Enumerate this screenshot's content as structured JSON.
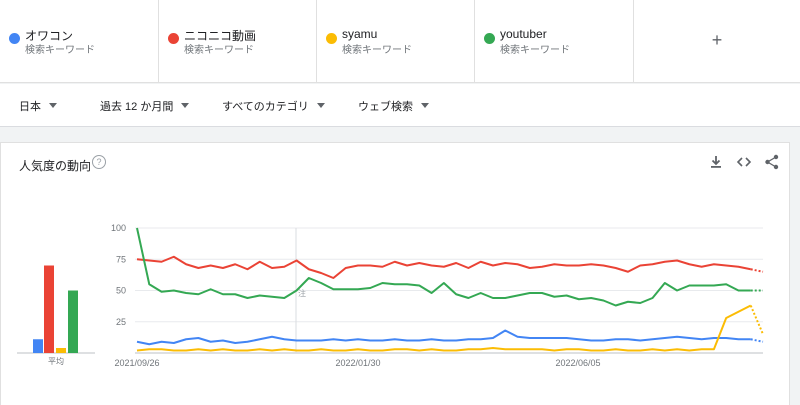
{
  "terms": [
    {
      "name": "オワコン",
      "sub": "検索キーワード",
      "color": "#4285f4"
    },
    {
      "name": "ニコニコ動画",
      "sub": "検索キーワード",
      "color": "#ea4335"
    },
    {
      "name": "syamu",
      "sub": "検索キーワード",
      "color": "#fbbc04"
    },
    {
      "name": "youtuber",
      "sub": "検索キーワード",
      "color": "#34a853"
    }
  ],
  "add_term": "+",
  "filters": {
    "region": "日本",
    "period": "過去 12 か月間",
    "category": "すべてのカテゴリ",
    "search_type": "ウェブ検索"
  },
  "card": {
    "title": "人気度の動向",
    "help": "?",
    "icons": [
      "download-icon",
      "embed-icon",
      "share-icon"
    ]
  },
  "chart_data": {
    "type": "line",
    "y_ticks": [
      100,
      75,
      50,
      25
    ],
    "x_ticks": [
      "2021/09/26",
      "2022/01/30",
      "2022/06/05"
    ],
    "ylim": [
      0,
      100
    ],
    "average_label": "平均",
    "note_marker": "注",
    "averages": {
      "オワコン": 11,
      "ニコニコ動画": 70,
      "syamu": 4,
      "youtuber": 50
    },
    "series": [
      {
        "name": "オワコン",
        "color": "#4285f4",
        "values": [
          9,
          7,
          9,
          8,
          11,
          12,
          9,
          10,
          8,
          9,
          11,
          13,
          11,
          10,
          10,
          10,
          11,
          10,
          11,
          10,
          10,
          11,
          10,
          10,
          11,
          10,
          10,
          11,
          11,
          12,
          18,
          13,
          12,
          12,
          12,
          12,
          11,
          10,
          10,
          11,
          11,
          10,
          11,
          12,
          13,
          12,
          11,
          12,
          12,
          11,
          11,
          9
        ]
      },
      {
        "name": "ニコニコ動画",
        "color": "#ea4335",
        "values": [
          75,
          74,
          73,
          77,
          71,
          68,
          70,
          68,
          71,
          67,
          73,
          68,
          69,
          74,
          67,
          64,
          60,
          68,
          70,
          70,
          69,
          73,
          70,
          72,
          70,
          69,
          72,
          68,
          73,
          70,
          72,
          71,
          68,
          69,
          71,
          70,
          70,
          71,
          70,
          68,
          65,
          70,
          71,
          73,
          74,
          71,
          69,
          71,
          70,
          69,
          67,
          65
        ]
      },
      {
        "name": "syamu",
        "color": "#fbbc04",
        "values": [
          2,
          3,
          3,
          2,
          2,
          3,
          2,
          3,
          2,
          2,
          3,
          2,
          3,
          2,
          2,
          3,
          2,
          2,
          3,
          2,
          2,
          3,
          3,
          2,
          3,
          2,
          2,
          3,
          3,
          4,
          3,
          3,
          3,
          3,
          2,
          3,
          3,
          2,
          2,
          3,
          2,
          2,
          3,
          2,
          3,
          2,
          3,
          3,
          28,
          33,
          38,
          15
        ]
      },
      {
        "name": "youtuber",
        "color": "#34a853",
        "values": [
          100,
          55,
          49,
          50,
          48,
          47,
          51,
          47,
          47,
          44,
          46,
          45,
          44,
          50,
          60,
          56,
          51,
          51,
          51,
          52,
          56,
          55,
          55,
          54,
          48,
          56,
          47,
          44,
          48,
          44,
          44,
          46,
          48,
          48,
          45,
          46,
          43,
          44,
          42,
          38,
          41,
          40,
          44,
          56,
          50,
          54,
          54,
          54,
          55,
          50,
          50,
          50
        ]
      }
    ]
  }
}
